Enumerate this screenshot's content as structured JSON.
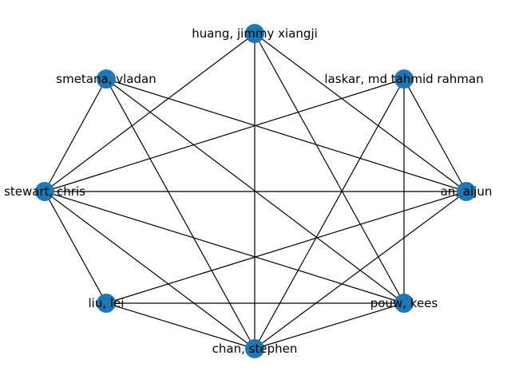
{
  "graph": {
    "node_color": "#1f77b4",
    "edge_color": "#000000",
    "nodes": [
      {
        "id": "huang",
        "label": "huang, jimmy xiangji"
      },
      {
        "id": "laskar",
        "label": "laskar, md tahmid rahman"
      },
      {
        "id": "an",
        "label": "an, aijun"
      },
      {
        "id": "pouw",
        "label": "pouw, kees"
      },
      {
        "id": "chan",
        "label": "chan, stephen"
      },
      {
        "id": "liu",
        "label": "liu, lei"
      },
      {
        "id": "stewart",
        "label": "stewart, chris"
      },
      {
        "id": "smetana",
        "label": "smetana, vladan"
      }
    ],
    "edges": [
      [
        "huang",
        "stewart"
      ],
      [
        "huang",
        "an"
      ],
      [
        "huang",
        "pouw"
      ],
      [
        "huang",
        "chan"
      ],
      [
        "smetana",
        "stewart"
      ],
      [
        "smetana",
        "an"
      ],
      [
        "smetana",
        "pouw"
      ],
      [
        "smetana",
        "chan"
      ],
      [
        "laskar",
        "stewart"
      ],
      [
        "laskar",
        "an"
      ],
      [
        "laskar",
        "pouw"
      ],
      [
        "laskar",
        "chan"
      ],
      [
        "stewart",
        "an"
      ],
      [
        "stewart",
        "liu"
      ],
      [
        "stewart",
        "chan"
      ],
      [
        "stewart",
        "pouw"
      ],
      [
        "an",
        "liu"
      ],
      [
        "an",
        "chan"
      ],
      [
        "liu",
        "pouw"
      ],
      [
        "liu",
        "chan"
      ],
      [
        "chan",
        "pouw"
      ]
    ]
  }
}
